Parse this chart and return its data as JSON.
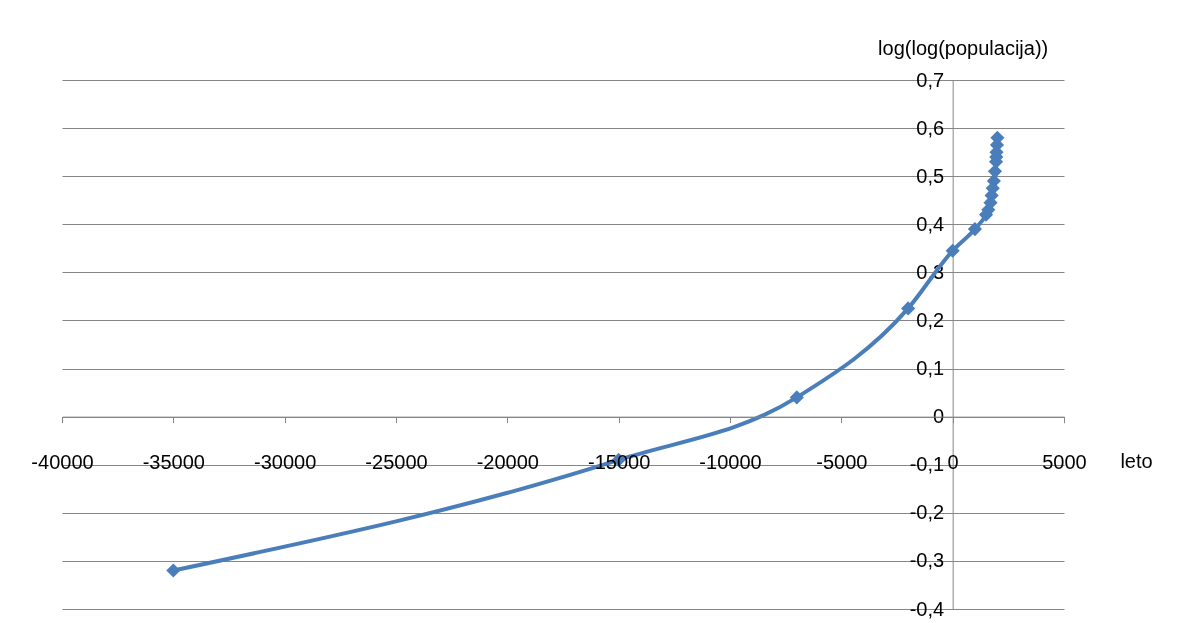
{
  "chart_data": {
    "type": "line",
    "xlabel": "leto",
    "ylabel": "log(log(populacija))",
    "series": [
      {
        "color": "#4a7ebb",
        "x": [
          -35000,
          -15000,
          -7000,
          -2000,
          0,
          1000,
          1500,
          1600,
          1700,
          1750,
          1800,
          1850,
          1900,
          1950,
          1960,
          1970,
          1980,
          1990,
          2000,
          2010
        ],
        "values": [
          -0.32,
          -0.09,
          0.04,
          0.225,
          0.345,
          0.39,
          0.42,
          0.43,
          0.445,
          0.46,
          0.475,
          0.49,
          0.51,
          0.53,
          0.54,
          0.55,
          null,
          0.565,
          null,
          0.58
        ]
      }
    ],
    "marker": "diamond",
    "grid": "y",
    "xlim": [
      -40000,
      5000
    ],
    "xticks": [
      -40000,
      -35000,
      -30000,
      -25000,
      -20000,
      -15000,
      -10000,
      -5000,
      0,
      5000
    ],
    "ylim": [
      -0.4,
      0.7
    ],
    "yticks": [
      {
        "value": -0.4,
        "label": "-0,4"
      },
      {
        "value": -0.3,
        "label": "-0,3"
      },
      {
        "value": -0.2,
        "label": "-0,2"
      },
      {
        "value": -0.1,
        "label": "-0,1"
      },
      0,
      {
        "value": 0.1,
        "label": "0,1"
      },
      {
        "value": 0.2,
        "label": "0,2"
      },
      {
        "value": 0.3,
        "label": "0,3"
      },
      {
        "value": 0.4,
        "label": "0,4"
      },
      {
        "value": 0.5,
        "label": "0,5"
      },
      {
        "value": 0.6,
        "label": "0,6"
      },
      {
        "value": 0.7,
        "label": "0,7"
      }
    ]
  }
}
